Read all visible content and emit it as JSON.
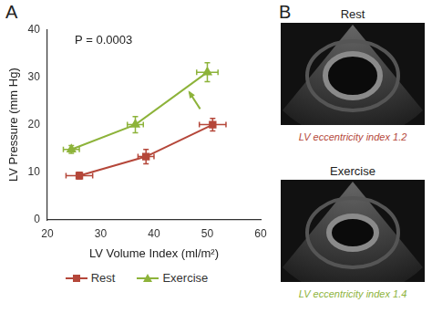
{
  "chart_data": {
    "type": "line",
    "panel_label": "A",
    "annotation": "P = 0.0003",
    "x_label": "LV Volume Index (ml/m²)",
    "y_label": "LV Pressure (mm Hg)",
    "xlim": [
      20,
      60
    ],
    "xticks": [
      20,
      30,
      40,
      50,
      60
    ],
    "ylim": [
      0,
      40
    ],
    "yticks": [
      0,
      10,
      20,
      30,
      40
    ],
    "grid": false,
    "legend": "bottom",
    "series": [
      {
        "name": "Rest",
        "color": "#b5473a",
        "marker": "square",
        "x": [
          26,
          38.5,
          51
        ],
        "values": [
          9.3,
          13.3,
          20
        ],
        "x_error": [
          2.5,
          1.5,
          2.5
        ],
        "y_error": [
          0.7,
          1.5,
          1.3
        ]
      },
      {
        "name": "Exercise",
        "color": "#8db33a",
        "marker": "triangle",
        "x": [
          24.5,
          36.5,
          50
        ],
        "values": [
          14.8,
          20,
          31
        ],
        "x_error": [
          1.5,
          1.5,
          2
        ],
        "y_error": [
          0.8,
          1.7,
          2
        ]
      }
    ]
  },
  "echo_panel": {
    "panel_label": "B",
    "images": [
      {
        "title": "Rest",
        "caption": "LV eccentricity index 1.2",
        "color": "#b5473a"
      },
      {
        "title": "Exercise",
        "caption": "LV eccentricity index 1.4",
        "color": "#8db33a"
      }
    ]
  }
}
